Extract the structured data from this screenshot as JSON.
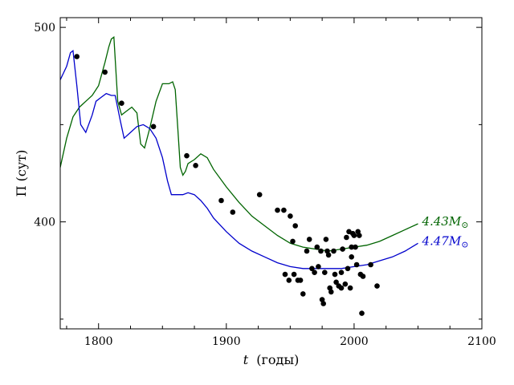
{
  "chart_data": {
    "type": "scatter",
    "xlabel_var": "t",
    "xlabel_unit": "(годы)",
    "ylabel": "Π (сут)",
    "xlim": [
      1770,
      2100
    ],
    "ylim": [
      345,
      505
    ],
    "x_ticks": [
      1800,
      1900,
      2000,
      2100
    ],
    "y_ticks": [
      400,
      500
    ],
    "x_minor_step": 25,
    "y_minor_step": 50,
    "grid": false,
    "points": [
      [
        1783,
        485
      ],
      [
        1805,
        477
      ],
      [
        1818,
        461
      ],
      [
        1843,
        449
      ],
      [
        1869,
        434
      ],
      [
        1876,
        429
      ],
      [
        1896,
        411
      ],
      [
        1905,
        405
      ],
      [
        1926,
        414
      ],
      [
        1940,
        406
      ],
      [
        1945,
        406
      ],
      [
        1950,
        403
      ],
      [
        1954,
        398
      ],
      [
        1952,
        390
      ],
      [
        1946,
        373
      ],
      [
        1949,
        370
      ],
      [
        1953,
        373
      ],
      [
        1956,
        370
      ],
      [
        1958,
        370
      ],
      [
        1960,
        363
      ],
      [
        1963,
        385
      ],
      [
        1965,
        391
      ],
      [
        1967,
        376
      ],
      [
        1969,
        374
      ],
      [
        1971,
        387
      ],
      [
        1972,
        377
      ],
      [
        1974,
        385
      ],
      [
        1975,
        360
      ],
      [
        1976,
        358
      ],
      [
        1977,
        374
      ],
      [
        1978,
        391
      ],
      [
        1979,
        385
      ],
      [
        1980,
        383
      ],
      [
        1981,
        366
      ],
      [
        1982,
        364
      ],
      [
        1984,
        385
      ],
      [
        1985,
        373
      ],
      [
        1986,
        369
      ],
      [
        1988,
        367
      ],
      [
        1990,
        374
      ],
      [
        1991,
        386
      ],
      [
        1993,
        368
      ],
      [
        1994,
        392
      ],
      [
        1995,
        376
      ],
      [
        1996,
        395
      ],
      [
        1997,
        366
      ],
      [
        1998,
        387
      ],
      [
        1999,
        394
      ],
      [
        2000,
        393
      ],
      [
        2001,
        387
      ],
      [
        2002,
        378
      ],
      [
        2003,
        395
      ],
      [
        2004,
        393
      ],
      [
        2005,
        373
      ],
      [
        2006,
        353
      ],
      [
        2007,
        372
      ],
      [
        2013,
        378
      ],
      [
        2018,
        367
      ],
      [
        1998,
        382
      ],
      [
        1990,
        366
      ]
    ],
    "series": [
      {
        "name": "4.43M",
        "name_suffix": "⊙",
        "color": "#006400",
        "x": [
          1770,
          1775,
          1780,
          1785,
          1790,
          1795,
          1800,
          1805,
          1808,
          1810,
          1812,
          1815,
          1818,
          1822,
          1826,
          1830,
          1833,
          1836,
          1840,
          1845,
          1850,
          1855,
          1858,
          1860,
          1862,
          1864,
          1866,
          1868,
          1870,
          1875,
          1880,
          1885,
          1890,
          1900,
          1910,
          1920,
          1930,
          1940,
          1950,
          1960,
          1970,
          1980,
          1990,
          2000,
          2010,
          2020,
          2030,
          2040,
          2050
        ],
        "y": [
          428,
          443,
          454,
          459,
          462,
          465,
          470,
          482,
          490,
          494,
          495,
          462,
          455,
          457,
          459,
          456,
          440,
          438,
          448,
          462,
          471,
          471,
          472,
          468,
          448,
          428,
          424,
          426,
          430,
          432,
          435,
          433,
          427,
          418,
          410,
          403,
          398,
          393,
          389,
          387,
          386,
          385,
          386,
          387,
          388,
          390,
          393,
          396,
          399
        ]
      },
      {
        "name": "4.47M",
        "name_suffix": "⊙",
        "color": "#0000cc",
        "x": [
          1770,
          1775,
          1778,
          1780,
          1783,
          1786,
          1790,
          1795,
          1798,
          1802,
          1806,
          1810,
          1813,
          1817,
          1820,
          1825,
          1830,
          1835,
          1840,
          1845,
          1850,
          1854,
          1857,
          1860,
          1863,
          1866,
          1870,
          1875,
          1880,
          1885,
          1890,
          1900,
          1910,
          1920,
          1930,
          1940,
          1950,
          1960,
          1970,
          1980,
          1990,
          2000,
          2010,
          2020,
          2030,
          2040,
          2050
        ],
        "y": [
          473,
          480,
          487,
          488,
          470,
          450,
          446,
          455,
          462,
          464,
          466,
          465,
          465,
          452,
          443,
          446,
          449,
          450,
          448,
          443,
          433,
          421,
          414,
          414,
          414,
          414,
          415,
          414,
          411,
          407,
          402,
          395,
          389,
          385,
          382,
          379,
          377,
          376,
          376,
          376,
          376,
          377,
          378,
          380,
          382,
          385,
          389
        ]
      }
    ]
  }
}
